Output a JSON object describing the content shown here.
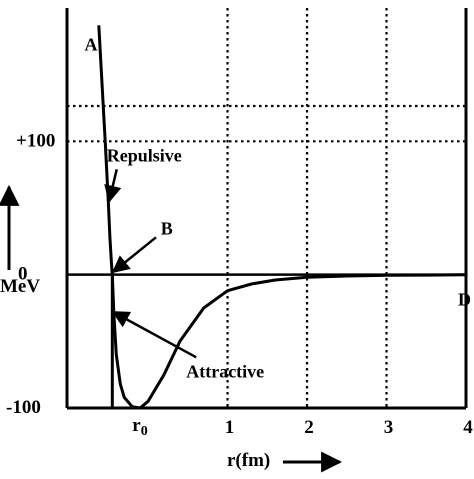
{
  "chart_data": {
    "type": "line",
    "title": "",
    "xlabel": "r(fm)",
    "ylabel": "MeV",
    "xlim": [
      -1.02,
      4.0
    ],
    "ylim": [
      -100,
      200
    ],
    "x_ticks": [
      {
        "value": 1,
        "label": "1"
      },
      {
        "value": 2,
        "label": "2"
      },
      {
        "value": 3,
        "label": "3"
      },
      {
        "value": 4,
        "label": "4"
      }
    ],
    "y_ticks": [
      {
        "value": -100,
        "label": "-100"
      },
      {
        "value": 0,
        "label": "0"
      },
      {
        "value": 100,
        "label": "+100"
      }
    ],
    "grid": "dotted",
    "series": [
      {
        "x": [
          -0.62,
          -0.54,
          -0.5,
          -0.48,
          -0.46,
          -0.45,
          -0.43,
          -0.4,
          -0.35,
          -0.3,
          -0.2,
          -0.1,
          0.0,
          0.2,
          0.4,
          0.7,
          1.0,
          1.3,
          1.6,
          2.0,
          2.5,
          3.0,
          3.5,
          4.0
        ],
        "y": [
          187,
          100,
          55,
          28,
          8,
          0,
          -30,
          -60,
          -82,
          -92,
          -99,
          -100,
          -95,
          -75,
          -50,
          -25,
          -12,
          -7,
          -4,
          -2,
          -1,
          -0.5,
          -0.3,
          0
        ]
      }
    ],
    "r0": {
      "x": -0.45,
      "label": "r",
      "sub": "0"
    },
    "annotations": [
      {
        "text": "A",
        "x": -0.8,
        "y": 168
      },
      {
        "text": "B",
        "x": 0.16,
        "y": 30
      },
      {
        "text": "D",
        "x": 3.9,
        "y": -23
      },
      {
        "text": "Repulsive",
        "x": -0.52,
        "y": 85,
        "arrow_to": [
          -0.49,
          55
        ]
      },
      {
        "text": "Attractive",
        "x": 0.48,
        "y": -77,
        "arrow_to": [
          -0.44,
          -28
        ]
      }
    ],
    "b_arrow": {
      "from": [
        0.1,
        28
      ],
      "to": [
        -0.44,
        2
      ]
    }
  }
}
